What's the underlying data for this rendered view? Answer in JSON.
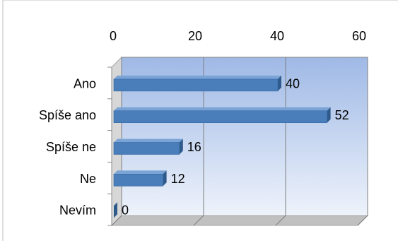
{
  "chart_data": {
    "type": "bar",
    "orientation": "horizontal",
    "categories": [
      "Ano",
      "Spíše ano",
      "Spíše ne",
      "Ne",
      "Nevím"
    ],
    "values": [
      40,
      52,
      16,
      12,
      0
    ],
    "data_labels": [
      "40",
      "52",
      "16",
      "12",
      "0"
    ],
    "x_ticks": [
      "0",
      "20",
      "40",
      "60"
    ],
    "xlim": [
      0,
      60
    ],
    "x_axis_position": "top",
    "grid": true,
    "legend": "none",
    "title": "",
    "xlabel": "",
    "ylabel": "",
    "style": "3d",
    "colors": {
      "bar_front": "#4a7ebb",
      "bar_top": "#7ba4d6",
      "bar_side": "#2f5a8c",
      "plot_back_top": "#9fb9e6",
      "plot_back_bottom": "#eef3fb",
      "wall_side": "#d7d7d7",
      "floor": "#c0c0c0",
      "grid": "#7f7f7f"
    }
  }
}
